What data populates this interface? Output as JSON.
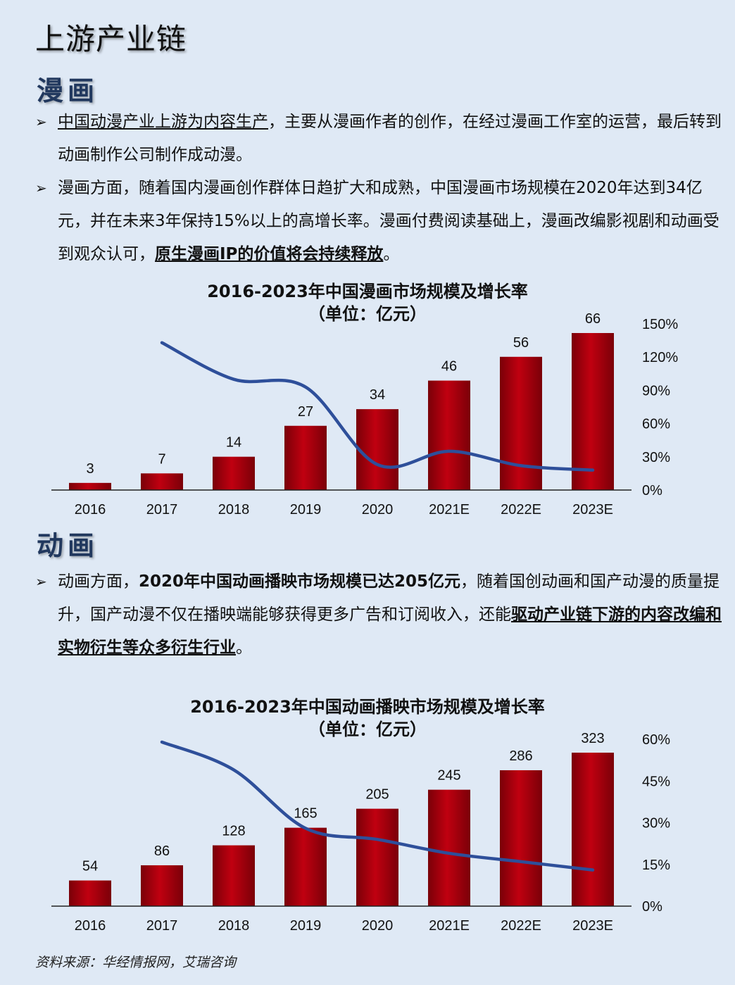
{
  "page_title": "上游产业链",
  "sections": {
    "comics": {
      "heading": "漫画",
      "bullet1": {
        "underlined": "中国动漫产业上游为内容生产",
        "rest": "，主要从漫画作者的创作，在经过漫画工作室的运营，最后转到动画制作公司制作成动漫。"
      },
      "bullet2": {
        "text": "漫画方面，随着国内漫画创作群体日趋扩大和成熟，中国漫画市场规模在2020年达到34亿元，并在未来3年保持15%以上的高增长率。漫画付费阅读基础上，漫画改编影视剧和动画受到观众认可，",
        "underlined": "原生漫画IP的价值将会持续释放",
        "end": "。"
      }
    },
    "animation": {
      "heading": "动画",
      "bullet1": {
        "start": "动画方面，",
        "bold": "2020年中国动画播映市场规模已达205亿元",
        "middle": "，随着国创动画和国产动漫的质量提升，国产动漫不仅在播映端能够获得更多广告和订阅收入，还能",
        "underlined": "驱动产业链下游的内容改编和实物衍生等众多衍生行业",
        "end": "。"
      }
    }
  },
  "source": "资料来源：华经情报网，艾瑞咨询",
  "colors": {
    "bar": "#c00010",
    "bar_dark": "#7a0008",
    "line": "#2e4f9a",
    "background": "#dfe9f5"
  },
  "chart_data": [
    {
      "type": "bar",
      "title": "2016-2023年中国漫画市场规模及增长率",
      "subtitle": "（单位：亿元）",
      "categories": [
        "2016",
        "2017",
        "2018",
        "2019",
        "2020",
        "2021E",
        "2022E",
        "2023E"
      ],
      "series": [
        {
          "type": "bar",
          "values": [
            3,
            7,
            14,
            27,
            34,
            46,
            56,
            66
          ],
          "axis": "left"
        },
        {
          "type": "line",
          "values": [
            null,
            133,
            100,
            93,
            23,
            35,
            22,
            18
          ],
          "axis": "right",
          "unit": "%"
        }
      ],
      "ylim_left": [
        0,
        66
      ],
      "ylim_right": [
        0,
        150
      ],
      "right_ticks": [
        "150%",
        "120%",
        "90%",
        "60%",
        "30%",
        "0%"
      ]
    },
    {
      "type": "bar",
      "title": "2016-2023年中国动画播映市场规模及增长率",
      "subtitle": "（单位：亿元）",
      "categories": [
        "2016",
        "2017",
        "2018",
        "2019",
        "2020",
        "2021E",
        "2022E",
        "2023E"
      ],
      "series": [
        {
          "type": "bar",
          "values": [
            54,
            86,
            128,
            165,
            205,
            245,
            286,
            323
          ],
          "axis": "left"
        },
        {
          "type": "line",
          "values": [
            null,
            59,
            49,
            28,
            24,
            19,
            16,
            13
          ],
          "axis": "right",
          "unit": "%"
        }
      ],
      "ylim_left": [
        0,
        323
      ],
      "ylim_right": [
        0,
        60
      ],
      "right_ticks": [
        "60%",
        "45%",
        "30%",
        "15%",
        "0%"
      ]
    }
  ]
}
